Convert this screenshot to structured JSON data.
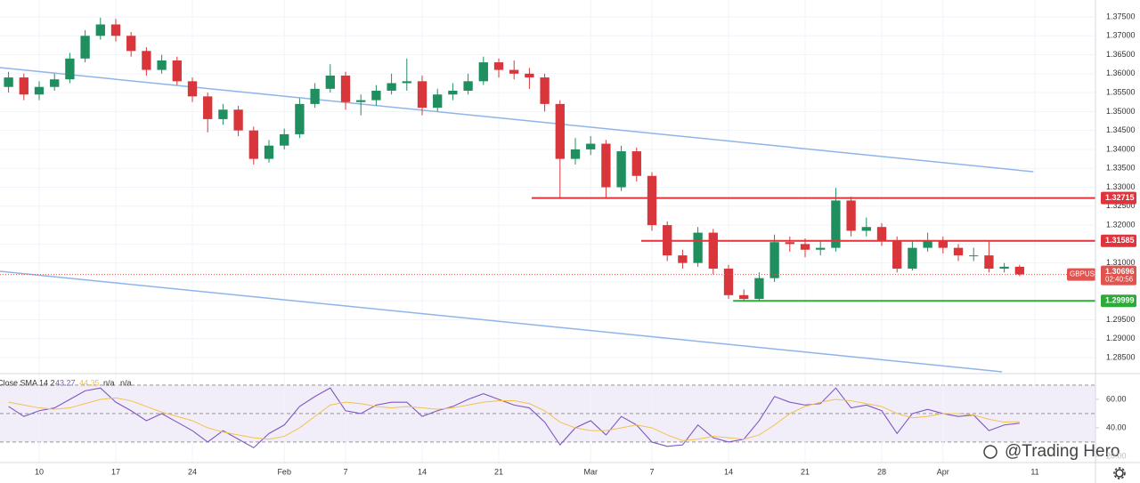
{
  "chart_data": [
    {
      "type": "candlestick",
      "symbol": "GBPUSD",
      "x": [
        -2,
        -1,
        0,
        1,
        2,
        3,
        4,
        5,
        6,
        7,
        8,
        9,
        10,
        11,
        12,
        13,
        14,
        15,
        16,
        17,
        18,
        19,
        20,
        21,
        22,
        23,
        24,
        25,
        26,
        27,
        28,
        29,
        30,
        31,
        32,
        33,
        34,
        35,
        36,
        37,
        38,
        39,
        40,
        41,
        42,
        43,
        44,
        45,
        46,
        47,
        48,
        49,
        50,
        51,
        52,
        53,
        54,
        55,
        56,
        57,
        58,
        59,
        60,
        61,
        62,
        63,
        64
      ],
      "open": [
        1.3565,
        1.359,
        1.3545,
        1.3565,
        1.3585,
        1.364,
        1.37,
        1.373,
        1.37,
        1.366,
        1.361,
        1.3635,
        1.358,
        1.354,
        1.348,
        1.3505,
        1.345,
        1.3375,
        1.341,
        1.344,
        1.352,
        1.356,
        1.3595,
        1.3525,
        1.353,
        1.3555,
        1.3575,
        1.358,
        1.351,
        1.3545,
        1.3555,
        1.358,
        1.363,
        1.361,
        1.36,
        1.359,
        1.352,
        1.3375,
        1.34,
        1.3415,
        1.33,
        1.3395,
        1.333,
        1.32,
        1.312,
        1.31,
        1.318,
        1.3085,
        1.3015,
        1.3005,
        1.306,
        1.3155,
        1.315,
        1.3135,
        1.314,
        1.3265,
        1.3185,
        1.3195,
        1.316,
        1.3085,
        1.314,
        1.316,
        1.314,
        1.312,
        1.312,
        1.3085,
        1.309
      ],
      "high": [
        1.3605,
        1.36,
        1.358,
        1.36,
        1.3655,
        1.3715,
        1.3748,
        1.3745,
        1.371,
        1.367,
        1.365,
        1.3645,
        1.359,
        1.355,
        1.352,
        1.3515,
        1.346,
        1.3425,
        1.3455,
        1.3535,
        1.3575,
        1.3625,
        1.3605,
        1.3545,
        1.357,
        1.36,
        1.364,
        1.3595,
        1.356,
        1.3575,
        1.36,
        1.3645,
        1.364,
        1.3635,
        1.3615,
        1.36,
        1.353,
        1.343,
        1.3435,
        1.3425,
        1.341,
        1.3405,
        1.334,
        1.321,
        1.3135,
        1.3195,
        1.319,
        1.3095,
        1.303,
        1.3075,
        1.3175,
        1.317,
        1.3165,
        1.316,
        1.3298,
        1.3275,
        1.322,
        1.3205,
        1.317,
        1.316,
        1.318,
        1.317,
        1.315,
        1.314,
        1.316,
        1.31,
        1.3095
      ],
      "low": [
        1.355,
        1.353,
        1.353,
        1.3555,
        1.3575,
        1.363,
        1.369,
        1.3685,
        1.3645,
        1.3595,
        1.36,
        1.357,
        1.3525,
        1.3445,
        1.3465,
        1.3435,
        1.336,
        1.3365,
        1.34,
        1.343,
        1.351,
        1.355,
        1.3505,
        1.349,
        1.3515,
        1.3545,
        1.3555,
        1.349,
        1.35,
        1.353,
        1.3545,
        1.357,
        1.359,
        1.3585,
        1.356,
        1.35,
        1.327,
        1.336,
        1.3385,
        1.327,
        1.329,
        1.3315,
        1.3185,
        1.3105,
        1.3085,
        1.309,
        1.307,
        1.3005,
        1.2999,
        1.3,
        1.305,
        1.313,
        1.3115,
        1.312,
        1.313,
        1.317,
        1.317,
        1.3145,
        1.3075,
        1.308,
        1.313,
        1.3125,
        1.3105,
        1.3105,
        1.3075,
        1.3075,
        1.3065
      ],
      "close": [
        1.359,
        1.3545,
        1.3565,
        1.3585,
        1.364,
        1.37,
        1.373,
        1.37,
        1.366,
        1.361,
        1.3635,
        1.358,
        1.354,
        1.348,
        1.3505,
        1.345,
        1.3375,
        1.341,
        1.344,
        1.352,
        1.356,
        1.3595,
        1.3525,
        1.353,
        1.3555,
        1.3575,
        1.358,
        1.351,
        1.3545,
        1.3555,
        1.358,
        1.363,
        1.361,
        1.36,
        1.359,
        1.352,
        1.3375,
        1.34,
        1.3415,
        1.33,
        1.3395,
        1.333,
        1.32,
        1.312,
        1.31,
        1.318,
        1.3085,
        1.3015,
        1.3005,
        1.306,
        1.3155,
        1.315,
        1.3135,
        1.314,
        1.3265,
        1.3185,
        1.3195,
        1.316,
        1.3085,
        1.314,
        1.316,
        1.314,
        1.312,
        1.312,
        1.3085,
        1.309,
        1.30696
      ],
      "up_color": "#1f8f5f",
      "down_color": "#d8363a",
      "xlim": [
        -2.558,
        68.953
      ],
      "ylim": [
        1.28078,
        1.37946
      ],
      "yticks": [
        {
          "value": 1.285,
          "label": "1.28500"
        },
        {
          "value": 1.29,
          "label": "1.29000"
        },
        {
          "value": 1.295,
          "label": "1.29500"
        },
        {
          "value": 1.3,
          "label": "1.30000"
        },
        {
          "value": 1.305,
          "label": "1.30500"
        },
        {
          "value": 1.31,
          "label": "1.31000"
        },
        {
          "value": 1.315,
          "label": "1.31500"
        },
        {
          "value": 1.32,
          "label": "1.32000"
        },
        {
          "value": 1.325,
          "label": "1.32500"
        },
        {
          "value": 1.33,
          "label": "1.33000"
        },
        {
          "value": 1.335,
          "label": "1.33500"
        },
        {
          "value": 1.34,
          "label": "1.34000"
        },
        {
          "value": 1.345,
          "label": "1.34500"
        },
        {
          "value": 1.35,
          "label": "1.35000"
        },
        {
          "value": 1.355,
          "label": "1.35500"
        },
        {
          "value": 1.36,
          "label": "1.36000"
        },
        {
          "value": 1.365,
          "label": "1.36500"
        },
        {
          "value": 1.37,
          "label": "1.37000"
        },
        {
          "value": 1.375,
          "label": "1.37500"
        }
      ],
      "grid": true,
      "trendlines": [
        {
          "x": [
            -2.558,
            64.9
          ],
          "y": [
            1.3616,
            1.3341
          ],
          "color": "#8fb4ea"
        },
        {
          "x": [
            -2.558,
            62.85
          ],
          "y": [
            1.3078,
            1.28125
          ],
          "color": "#8fb4ea"
        }
      ],
      "levels": [
        {
          "value": 1.32715,
          "from": 32.15,
          "color": "#e0343c"
        },
        {
          "value": 1.31585,
          "from": 39.3,
          "color": "#e0343c"
        },
        {
          "value": 1.29999,
          "from": 45.3,
          "color": "#2eaa3a"
        }
      ],
      "last": {
        "value": 1.30696,
        "countdown": "02:40:56",
        "color": "#e0534f"
      },
      "watermark": "@Trading Hero"
    },
    {
      "type": "line",
      "title": "Close SMA 14 2",
      "na": [
        "n/a",
        "n/a"
      ],
      "x": [
        -2,
        -1,
        0,
        1,
        2,
        3,
        4,
        5,
        6,
        7,
        8,
        9,
        10,
        11,
        12,
        13,
        14,
        15,
        16,
        17,
        18,
        19,
        20,
        21,
        22,
        23,
        24,
        25,
        26,
        27,
        28,
        29,
        30,
        31,
        32,
        33,
        34,
        35,
        36,
        37,
        38,
        39,
        40,
        41,
        42,
        43,
        44,
        45,
        46,
        47,
        48,
        49,
        50,
        51,
        52,
        53,
        54,
        55,
        56,
        57,
        58,
        59,
        60,
        61,
        62,
        63,
        64
      ],
      "series": [
        {
          "color": "#7e57c2",
          "values": [
            55,
            48,
            52,
            54,
            60,
            66,
            68,
            58,
            52,
            45,
            50,
            44,
            38,
            30,
            38,
            32,
            26,
            36,
            42,
            55,
            62,
            68,
            52,
            50,
            56,
            58,
            58,
            48,
            52,
            55,
            60,
            64,
            60,
            56,
            54,
            44,
            28,
            40,
            45,
            35,
            48,
            42,
            30,
            27,
            28,
            42,
            33,
            30,
            32,
            45,
            62,
            58,
            56,
            57,
            68,
            54,
            56,
            52,
            36,
            50,
            53,
            50,
            48,
            49,
            38,
            42,
            43.27
          ]
        },
        {
          "color": "#f2c14e",
          "values": [
            58,
            56,
            54,
            53,
            54,
            57,
            60,
            61,
            59,
            55,
            51,
            48,
            45,
            40,
            37,
            35,
            33,
            32,
            34,
            40,
            48,
            56,
            58,
            57,
            55,
            54,
            55,
            54,
            53,
            54,
            56,
            58,
            59,
            59,
            57,
            52,
            44,
            40,
            38,
            38,
            40,
            42,
            40,
            35,
            31,
            32,
            34,
            33,
            32,
            35,
            42,
            50,
            55,
            58,
            60,
            59,
            57,
            55,
            50,
            47,
            48,
            50,
            50,
            49,
            46,
            44,
            44.35
          ]
        }
      ],
      "bands": [
        30,
        50,
        70
      ],
      "xlim": [
        -2.558,
        68.953
      ],
      "ylim": [
        15.6,
        78.1
      ],
      "yticks": [
        {
          "value": 20,
          "label": "20.00"
        },
        {
          "value": 40,
          "label": "40.00"
        },
        {
          "value": 60,
          "label": "60.00"
        }
      ],
      "xticks": [
        {
          "value": 0,
          "label": "10"
        },
        {
          "value": 5,
          "label": "17"
        },
        {
          "value": 10,
          "label": "24"
        },
        {
          "value": 16,
          "label": "Feb"
        },
        {
          "value": 20,
          "label": "7"
        },
        {
          "value": 25,
          "label": "14"
        },
        {
          "value": 30,
          "label": "21"
        },
        {
          "value": 36,
          "label": "Mar"
        },
        {
          "value": 40,
          "label": "7"
        },
        {
          "value": 45,
          "label": "14"
        },
        {
          "value": 50,
          "label": "21"
        },
        {
          "value": 55,
          "label": "28"
        },
        {
          "value": 59,
          "label": "Apr"
        },
        {
          "value": 65,
          "label": "11"
        }
      ]
    }
  ]
}
